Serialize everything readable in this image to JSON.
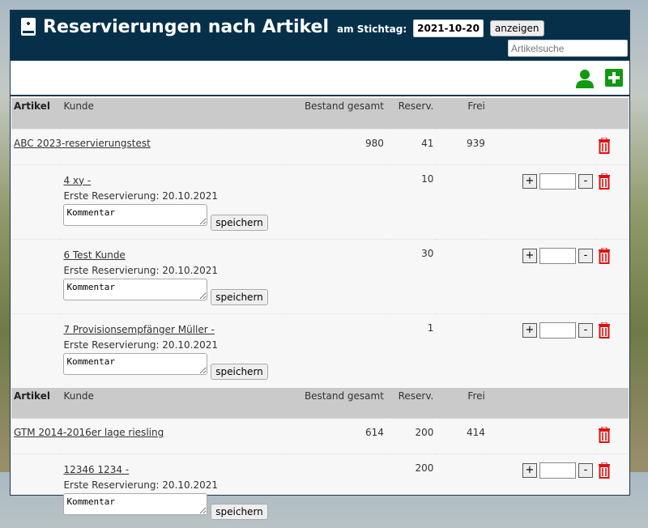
{
  "header": {
    "title": "Reservierungen nach Artikel",
    "date_label": "am Stichtag:",
    "date_value": "2021-10-20",
    "show_button": "anzeigen",
    "search_placeholder": "Artikelsuche"
  },
  "colors": {
    "header_bg": "#06304a",
    "icon_green": "#119911",
    "trash_red": "#dd1111"
  },
  "columns": {
    "artikel": "Artikel",
    "kunde": "Kunde",
    "bestand": "Bestand gesamt",
    "reserv": "Reserv.",
    "frei": "Frei"
  },
  "groups": [
    {
      "article": "ABC 2023-reservierungstest",
      "bestand": "980",
      "reserv": "41",
      "frei": "939",
      "customers": [
        {
          "name": "4 xy -",
          "first": "Erste Reservierung: 20.10.2021",
          "reserv": "10",
          "comment": "Kommentar",
          "save": "speichern"
        },
        {
          "name": "6 Test Kunde",
          "first": "Erste Reservierung: 20.10.2021",
          "reserv": "30",
          "comment": "Kommentar",
          "save": "speichern"
        },
        {
          "name": "7 Provisionsempfänger Müller -",
          "first": "Erste Reservierung: 20.10.2021",
          "reserv": "1",
          "comment": "Kommentar",
          "save": "speichern"
        }
      ]
    },
    {
      "article": "GTM 2014-2016er lage riesling",
      "bestand": "614",
      "reserv": "200",
      "frei": "414",
      "customers": [
        {
          "name": "12346 1234 -",
          "first": "Erste Reservierung: 20.10.2021",
          "reserv": "200",
          "comment": "Kommentar",
          "save": "speichern"
        }
      ]
    }
  ]
}
